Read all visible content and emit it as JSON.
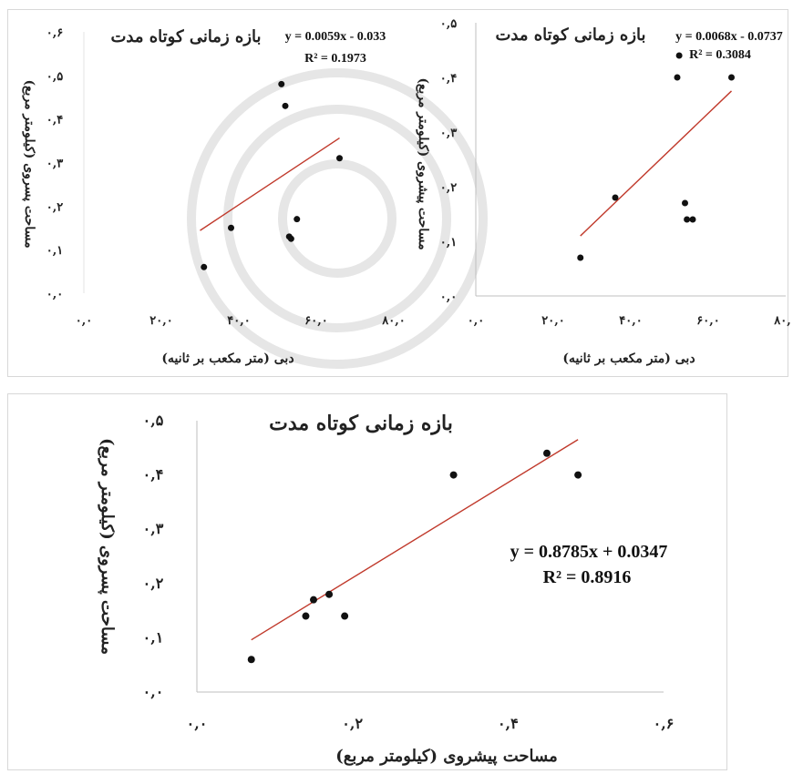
{
  "chart_data": [
    {
      "type": "scatter",
      "title": "بازه زمانی کوتاه مدت",
      "equation": "y = 0.0059x - 0.033",
      "r2": "R² = 0.1973",
      "xlabel": "دبی (متر مکعب بر ثانیه)",
      "ylabel": "مساحت پسروی (کیلومتر مربع)",
      "xlim": [
        0,
        80
      ],
      "ylim": [
        0,
        0.6
      ],
      "x_ticks": [
        "۰,۰",
        "۲۰,۰",
        "۴۰,۰",
        "۶۰,۰",
        "۸۰,۰"
      ],
      "y_ticks": [
        "۰,۰",
        "۰,۱",
        "۰,۲",
        "۰,۳",
        "۰,۴",
        "۰,۵",
        "۰,۶"
      ],
      "points": [
        [
          31,
          0.06
        ],
        [
          38,
          0.15
        ],
        [
          51,
          0.48
        ],
        [
          52,
          0.43
        ],
        [
          53,
          0.13
        ],
        [
          53.5,
          0.125
        ],
        [
          55,
          0.17
        ],
        [
          66,
          0.31
        ]
      ],
      "trendline": {
        "slope": 0.0059,
        "intercept": -0.033,
        "x_range": [
          30,
          66
        ]
      },
      "trend_color": "#c0392b"
    },
    {
      "type": "scatter",
      "title": "بازه زمانی کوتاه مدت",
      "equation": "y = 0.0068x - 0.0737",
      "r2": "R² = 0.3084",
      "xlabel": "دبی (متر مکعب بر ثانیه)",
      "ylabel": "مساحت پیشروی (کیلومتر مربع)",
      "xlim": [
        0,
        80
      ],
      "ylim": [
        0,
        0.5
      ],
      "x_ticks": [
        "۰,۰",
        "۲۰,۰",
        "۴۰,۰",
        "۶۰,۰",
        "۸۰,۰"
      ],
      "y_ticks": [
        "۰,۰",
        "۰,۱",
        "۰,۲",
        "۰,۳",
        "۰,۴",
        "۰,۵"
      ],
      "points": [
        [
          27,
          0.07
        ],
        [
          36,
          0.18
        ],
        [
          52,
          0.4
        ],
        [
          52.5,
          0.44
        ],
        [
          54,
          0.17
        ],
        [
          54.5,
          0.14
        ],
        [
          56,
          0.14
        ],
        [
          66,
          0.4
        ]
      ],
      "trendline": {
        "slope": 0.0068,
        "intercept": -0.0737,
        "x_range": [
          27,
          66
        ]
      },
      "trend_color": "#c0392b"
    },
    {
      "type": "scatter",
      "title": "بازه زمانی کوتاه مدت",
      "equation": "y = 0.8785x + 0.0347",
      "r2": "R² = 0.8916",
      "xlabel": "مساحت پیشروی (کیلومتر مربع)",
      "ylabel": "مساحت پسروی (کیلومتر مربع)",
      "xlim": [
        0,
        0.6
      ],
      "ylim": [
        0,
        0.5
      ],
      "x_ticks": [
        "۰,۰",
        "۰,۲",
        "۰,۴",
        "۰,۶"
      ],
      "y_ticks": [
        "۰,۰",
        "۰,۱",
        "۰,۲",
        "۰,۳",
        "۰,۴",
        "۰,۵"
      ],
      "points": [
        [
          0.07,
          0.06
        ],
        [
          0.14,
          0.14
        ],
        [
          0.15,
          0.17
        ],
        [
          0.17,
          0.18
        ],
        [
          0.19,
          0.14
        ],
        [
          0.33,
          0.4
        ],
        [
          0.45,
          0.44
        ],
        [
          0.49,
          0.4
        ]
      ],
      "trendline": {
        "slope": 0.8785,
        "intercept": 0.0347,
        "x_range": [
          0.07,
          0.49
        ]
      },
      "trend_color": "#c0392b"
    }
  ]
}
